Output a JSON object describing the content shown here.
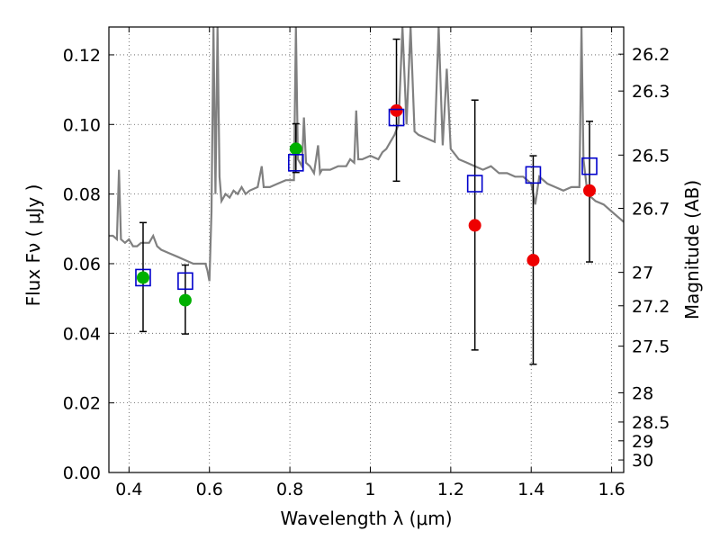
{
  "chart_data": {
    "type": "scatter",
    "title": "",
    "xlabel": "Wavelength  λ (μm)",
    "ylabel": "Flux  Fν  ( μJy )",
    "y2label": "Magnitude (AB)",
    "xlim": [
      0.35,
      1.63
    ],
    "ylim": [
      0.0,
      0.128
    ],
    "grid": true,
    "grid_style": "dotted",
    "x_ticks": [
      0.4,
      0.6,
      0.8,
      1.0,
      1.2,
      1.4,
      1.6
    ],
    "x_tick_labels": [
      "0.4",
      "0.6",
      "0.8",
      "1",
      "1.2",
      "1.4",
      "1.6"
    ],
    "y_ticks": [
      0.0,
      0.02,
      0.04,
      0.06,
      0.08,
      0.1,
      0.12
    ],
    "y_tick_labels": [
      "0.00",
      "0.02",
      "0.04",
      "0.06",
      "0.08",
      "0.10",
      "0.12"
    ],
    "mag_ticks": [
      {
        "label": "26.2",
        "flux": 0.1202
      },
      {
        "label": "26.3",
        "flux": 0.1096
      },
      {
        "label": "26.5",
        "flux": 0.0912
      },
      {
        "label": "26.7",
        "flux": 0.0759
      },
      {
        "label": "27",
        "flux": 0.0575
      },
      {
        "label": "27.2",
        "flux": 0.0479
      },
      {
        "label": "27.5",
        "flux": 0.0363
      },
      {
        "label": "28",
        "flux": 0.0229
      },
      {
        "label": "28.5",
        "flux": 0.0145
      },
      {
        "label": "29",
        "flux": 0.0091
      },
      {
        "label": "30",
        "flux": 0.0036
      }
    ],
    "colors": {
      "spectrum": "#808080",
      "model_marker": "#0000cc",
      "green_marker": "#00b000",
      "red_marker": "#ee0000",
      "error_bar": "#000000",
      "grid": "#555555"
    },
    "spectrum": [
      [
        0.35,
        0.068
      ],
      [
        0.36,
        0.068
      ],
      [
        0.37,
        0.067
      ],
      [
        0.375,
        0.087
      ],
      [
        0.38,
        0.067
      ],
      [
        0.39,
        0.066
      ],
      [
        0.4,
        0.067
      ],
      [
        0.41,
        0.065
      ],
      [
        0.42,
        0.065
      ],
      [
        0.43,
        0.066
      ],
      [
        0.44,
        0.066
      ],
      [
        0.45,
        0.066
      ],
      [
        0.46,
        0.068
      ],
      [
        0.47,
        0.065
      ],
      [
        0.48,
        0.064
      ],
      [
        0.5,
        0.063
      ],
      [
        0.52,
        0.062
      ],
      [
        0.54,
        0.061
      ],
      [
        0.56,
        0.06
      ],
      [
        0.58,
        0.06
      ],
      [
        0.59,
        0.06
      ],
      [
        0.595,
        0.058
      ],
      [
        0.6,
        0.055
      ],
      [
        0.605,
        0.075
      ],
      [
        0.61,
        0.128
      ],
      [
        0.615,
        0.08
      ],
      [
        0.62,
        0.128
      ],
      [
        0.625,
        0.085
      ],
      [
        0.63,
        0.078
      ],
      [
        0.64,
        0.08
      ],
      [
        0.65,
        0.079
      ],
      [
        0.66,
        0.081
      ],
      [
        0.67,
        0.08
      ],
      [
        0.68,
        0.082
      ],
      [
        0.69,
        0.08
      ],
      [
        0.7,
        0.081
      ],
      [
        0.72,
        0.082
      ],
      [
        0.73,
        0.088
      ],
      [
        0.735,
        0.082
      ],
      [
        0.75,
        0.082
      ],
      [
        0.77,
        0.083
      ],
      [
        0.79,
        0.084
      ],
      [
        0.8,
        0.084
      ],
      [
        0.81,
        0.084
      ],
      [
        0.815,
        0.128
      ],
      [
        0.82,
        0.09
      ],
      [
        0.83,
        0.088
      ],
      [
        0.835,
        0.102
      ],
      [
        0.84,
        0.089
      ],
      [
        0.85,
        0.088
      ],
      [
        0.86,
        0.086
      ],
      [
        0.87,
        0.094
      ],
      [
        0.875,
        0.086
      ],
      [
        0.88,
        0.087
      ],
      [
        0.9,
        0.087
      ],
      [
        0.92,
        0.088
      ],
      [
        0.94,
        0.088
      ],
      [
        0.95,
        0.09
      ],
      [
        0.96,
        0.089
      ],
      [
        0.965,
        0.104
      ],
      [
        0.97,
        0.09
      ],
      [
        0.98,
        0.09
      ],
      [
        1.0,
        0.091
      ],
      [
        1.02,
        0.09
      ],
      [
        1.03,
        0.092
      ],
      [
        1.04,
        0.093
      ],
      [
        1.05,
        0.095
      ],
      [
        1.06,
        0.097
      ],
      [
        1.07,
        0.1
      ],
      [
        1.08,
        0.128
      ],
      [
        1.09,
        0.1
      ],
      [
        1.1,
        0.128
      ],
      [
        1.11,
        0.098
      ],
      [
        1.12,
        0.097
      ],
      [
        1.14,
        0.096
      ],
      [
        1.16,
        0.095
      ],
      [
        1.17,
        0.128
      ],
      [
        1.18,
        0.094
      ],
      [
        1.19,
        0.116
      ],
      [
        1.2,
        0.093
      ],
      [
        1.22,
        0.09
      ],
      [
        1.24,
        0.089
      ],
      [
        1.26,
        0.088
      ],
      [
        1.28,
        0.087
      ],
      [
        1.3,
        0.088
      ],
      [
        1.32,
        0.086
      ],
      [
        1.34,
        0.086
      ],
      [
        1.36,
        0.085
      ],
      [
        1.38,
        0.085
      ],
      [
        1.4,
        0.083
      ],
      [
        1.41,
        0.077
      ],
      [
        1.42,
        0.085
      ],
      [
        1.44,
        0.083
      ],
      [
        1.46,
        0.082
      ],
      [
        1.48,
        0.081
      ],
      [
        1.5,
        0.082
      ],
      [
        1.52,
        0.082
      ],
      [
        1.525,
        0.128
      ],
      [
        1.53,
        0.09
      ],
      [
        1.54,
        0.08
      ],
      [
        1.56,
        0.078
      ],
      [
        1.58,
        0.077
      ],
      [
        1.6,
        0.075
      ],
      [
        1.62,
        0.073
      ],
      [
        1.63,
        0.072
      ]
    ],
    "series": [
      {
        "marker": "open-square",
        "x": [
          0.435,
          0.54,
          0.815,
          1.065,
          1.26,
          1.405,
          1.545
        ],
        "y": [
          0.056,
          0.055,
          0.089,
          0.102,
          0.083,
          0.0855,
          0.088
        ]
      },
      {
        "marker": "filled-circle-green",
        "x": [
          0.435,
          0.54,
          0.815
        ],
        "y": [
          0.056,
          0.0495,
          0.093
        ],
        "yerr_low": [
          0.0405,
          0.0398,
          0.0862
        ],
        "yerr_high": [
          0.0718,
          0.0596,
          0.1002
        ]
      },
      {
        "marker": "filled-circle-red",
        "x": [
          1.065,
          1.26,
          1.405,
          1.545
        ],
        "y": [
          0.104,
          0.071,
          0.061,
          0.081
        ],
        "yerr_low": [
          0.0837,
          0.0352,
          0.0311,
          0.0605
        ],
        "yerr_high": [
          0.1245,
          0.107,
          0.091,
          0.1009
        ]
      }
    ]
  }
}
